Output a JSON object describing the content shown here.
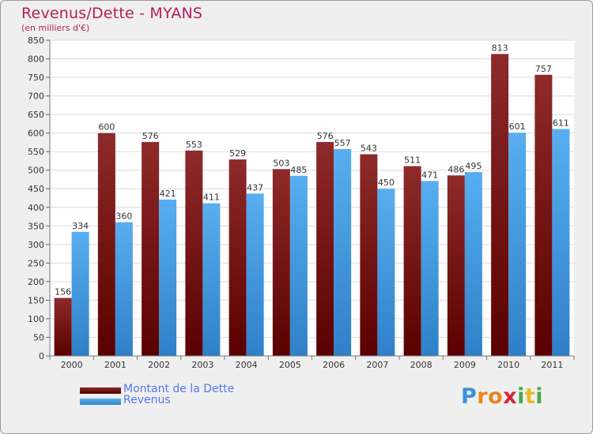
{
  "chart_data": {
    "type": "bar",
    "title": "Revenus/Dette - MYANS",
    "subtitle": "(en milliers d'€)",
    "categories": [
      "2000",
      "2001",
      "2002",
      "2003",
      "2004",
      "2005",
      "2006",
      "2007",
      "2008",
      "2009",
      "2010",
      "2011"
    ],
    "series": [
      {
        "name": "Montant de la Dette",
        "color": "#8b1a1a",
        "values": [
          156,
          600,
          576,
          553,
          529,
          503,
          576,
          543,
          511,
          486,
          813,
          757
        ]
      },
      {
        "name": "Revenus",
        "color": "#4aa3e8",
        "values": [
          334,
          360,
          421,
          411,
          437,
          485,
          557,
          450,
          471,
          495,
          601,
          611
        ]
      }
    ],
    "ylim": [
      0,
      850
    ],
    "ytick_step": 50,
    "grid": true,
    "legend_position": "bottom-left"
  },
  "logo": {
    "letters": [
      {
        "ch": "P",
        "color": "#3b8fd9"
      },
      {
        "ch": "r",
        "color": "#e8861f"
      },
      {
        "ch": "o",
        "color": "#e8861f"
      },
      {
        "ch": "x",
        "color": "#d6243a"
      },
      {
        "ch": "i",
        "color": "#4aa84a"
      },
      {
        "ch": "t",
        "color": "#e8b81f"
      },
      {
        "ch": "i",
        "color": "#4aa84a"
      }
    ]
  }
}
